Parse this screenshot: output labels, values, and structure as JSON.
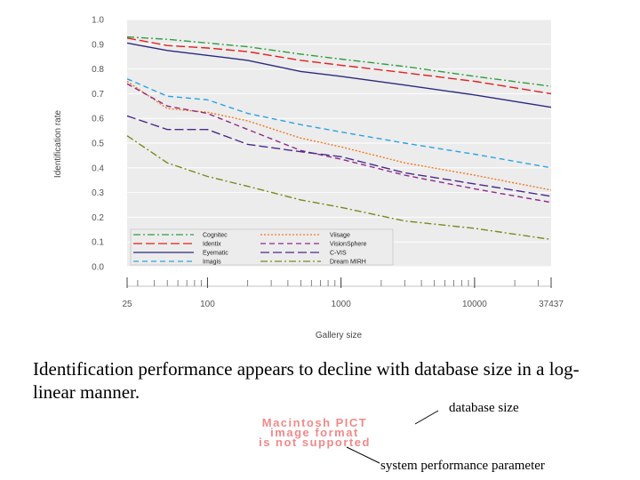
{
  "chart_data": {
    "type": "line",
    "title": "",
    "xlabel": "Gallery size",
    "ylabel": "Identification rate",
    "xscale": "log",
    "xlim": [
      25,
      37437
    ],
    "ylim": [
      0.0,
      1.0
    ],
    "x_ticks": [
      25,
      100,
      1000,
      10000,
      37437
    ],
    "y_ticks": [
      "0.0",
      "0.1",
      "0.2",
      "0.3",
      "0.4",
      "0.5",
      "0.6",
      "0.7",
      "0.8",
      "0.9",
      "1.0"
    ],
    "grid": true,
    "legend_position": "bottom-left",
    "series": [
      {
        "name": "Cognitec",
        "color": "#2e9e3e",
        "dash": "dashdot",
        "points": [
          [
            25,
            0.93
          ],
          [
            50,
            0.92
          ],
          [
            100,
            0.905
          ],
          [
            200,
            0.89
          ],
          [
            500,
            0.86
          ],
          [
            1000,
            0.84
          ],
          [
            3000,
            0.81
          ],
          [
            10000,
            0.77
          ],
          [
            37437,
            0.73
          ]
        ]
      },
      {
        "name": "Identix",
        "color": "#e02020",
        "dash": "longdash",
        "points": [
          [
            25,
            0.925
          ],
          [
            50,
            0.895
          ],
          [
            100,
            0.885
          ],
          [
            200,
            0.87
          ],
          [
            500,
            0.835
          ],
          [
            1000,
            0.815
          ],
          [
            3000,
            0.785
          ],
          [
            10000,
            0.75
          ],
          [
            37437,
            0.7
          ]
        ]
      },
      {
        "name": "Eyematic",
        "color": "#2a2a80",
        "dash": "solid",
        "points": [
          [
            25,
            0.905
          ],
          [
            50,
            0.875
          ],
          [
            100,
            0.855
          ],
          [
            200,
            0.835
          ],
          [
            500,
            0.79
          ],
          [
            1000,
            0.77
          ],
          [
            3000,
            0.735
          ],
          [
            10000,
            0.695
          ],
          [
            37437,
            0.645
          ]
        ]
      },
      {
        "name": "Imagis",
        "color": "#2aa4e0",
        "dash": "dash",
        "points": [
          [
            25,
            0.76
          ],
          [
            50,
            0.69
          ],
          [
            100,
            0.675
          ],
          [
            200,
            0.62
          ],
          [
            500,
            0.575
          ],
          [
            1000,
            0.545
          ],
          [
            3000,
            0.5
          ],
          [
            10000,
            0.455
          ],
          [
            37437,
            0.4
          ]
        ]
      },
      {
        "name": "Viisage",
        "color": "#f07820",
        "dash": "dot",
        "points": [
          [
            25,
            0.75
          ],
          [
            50,
            0.64
          ],
          [
            100,
            0.625
          ],
          [
            200,
            0.59
          ],
          [
            500,
            0.52
          ],
          [
            1000,
            0.485
          ],
          [
            3000,
            0.42
          ],
          [
            10000,
            0.37
          ],
          [
            37437,
            0.31
          ]
        ]
      },
      {
        "name": "VisionSphere",
        "color": "#8e2a8a",
        "dash": "dash",
        "points": [
          [
            25,
            0.74
          ],
          [
            50,
            0.65
          ],
          [
            100,
            0.62
          ],
          [
            200,
            0.555
          ],
          [
            500,
            0.47
          ],
          [
            1000,
            0.435
          ],
          [
            3000,
            0.37
          ],
          [
            10000,
            0.315
          ],
          [
            37437,
            0.26
          ]
        ]
      },
      {
        "name": "C-VIS",
        "color": "#4a2a8a",
        "dash": "longdash",
        "points": [
          [
            25,
            0.61
          ],
          [
            50,
            0.555
          ],
          [
            100,
            0.555
          ],
          [
            200,
            0.495
          ],
          [
            500,
            0.465
          ],
          [
            1000,
            0.445
          ],
          [
            3000,
            0.38
          ],
          [
            10000,
            0.335
          ],
          [
            37437,
            0.285
          ]
        ]
      },
      {
        "name": "Dream MIRH",
        "color": "#7a8a20",
        "dash": "dashdot",
        "points": [
          [
            25,
            0.53
          ],
          [
            50,
            0.42
          ],
          [
            100,
            0.365
          ],
          [
            200,
            0.325
          ],
          [
            500,
            0.27
          ],
          [
            1000,
            0.24
          ],
          [
            3000,
            0.185
          ],
          [
            10000,
            0.155
          ],
          [
            37437,
            0.11
          ]
        ]
      }
    ]
  },
  "caption": "Identification performance appears to decline with database size in a log-linear manner.",
  "annotations": {
    "database_size": "database size",
    "system_parameter": "system performance parameter"
  },
  "placeholder_image": {
    "line1": "Macintosh PICT",
    "line2": "image format",
    "line3": "is not supported"
  }
}
